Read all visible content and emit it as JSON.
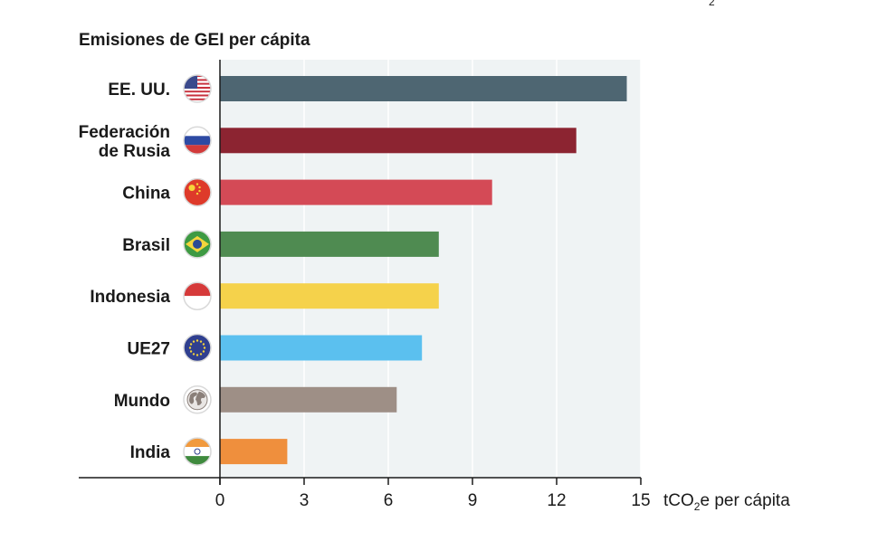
{
  "chart_data": {
    "type": "bar",
    "orientation": "horizontal",
    "title": "Emisiones de GEI per cápita",
    "xlabel": {
      "prefix": "tCO",
      "subscript": "2",
      "suffix": "e per cápita"
    },
    "corner_mark": "2",
    "categories": [
      "EE. UU.",
      "Federación de Rusia",
      "China",
      "Brasil",
      "Indonesia",
      "UE27",
      "Mundo",
      "India"
    ],
    "category_lines": [
      [
        "EE. UU."
      ],
      [
        "Federación",
        "de Rusia"
      ],
      [
        "China"
      ],
      [
        "Brasil"
      ],
      [
        "Indonesia"
      ],
      [
        "UE27"
      ],
      [
        "Mundo"
      ],
      [
        "India"
      ]
    ],
    "values": [
      14.5,
      12.7,
      9.7,
      7.8,
      7.8,
      7.2,
      6.3,
      2.4
    ],
    "bar_colors": [
      "#4e6672",
      "#8c2431",
      "#d44a56",
      "#4f8b51",
      "#f5d24b",
      "#5bc0ef",
      "#9e8f86",
      "#ef8f3d"
    ],
    "icons": [
      "flag-usa-icon",
      "flag-russia-icon",
      "flag-china-icon",
      "flag-brazil-icon",
      "flag-indonesia-icon",
      "flag-eu-icon",
      "globe-icon",
      "flag-india-icon"
    ],
    "xlim": [
      0,
      15
    ],
    "xticks": [
      0,
      3,
      6,
      9,
      12,
      15
    ],
    "grid": true,
    "plot_background": "#eff3f4"
  }
}
